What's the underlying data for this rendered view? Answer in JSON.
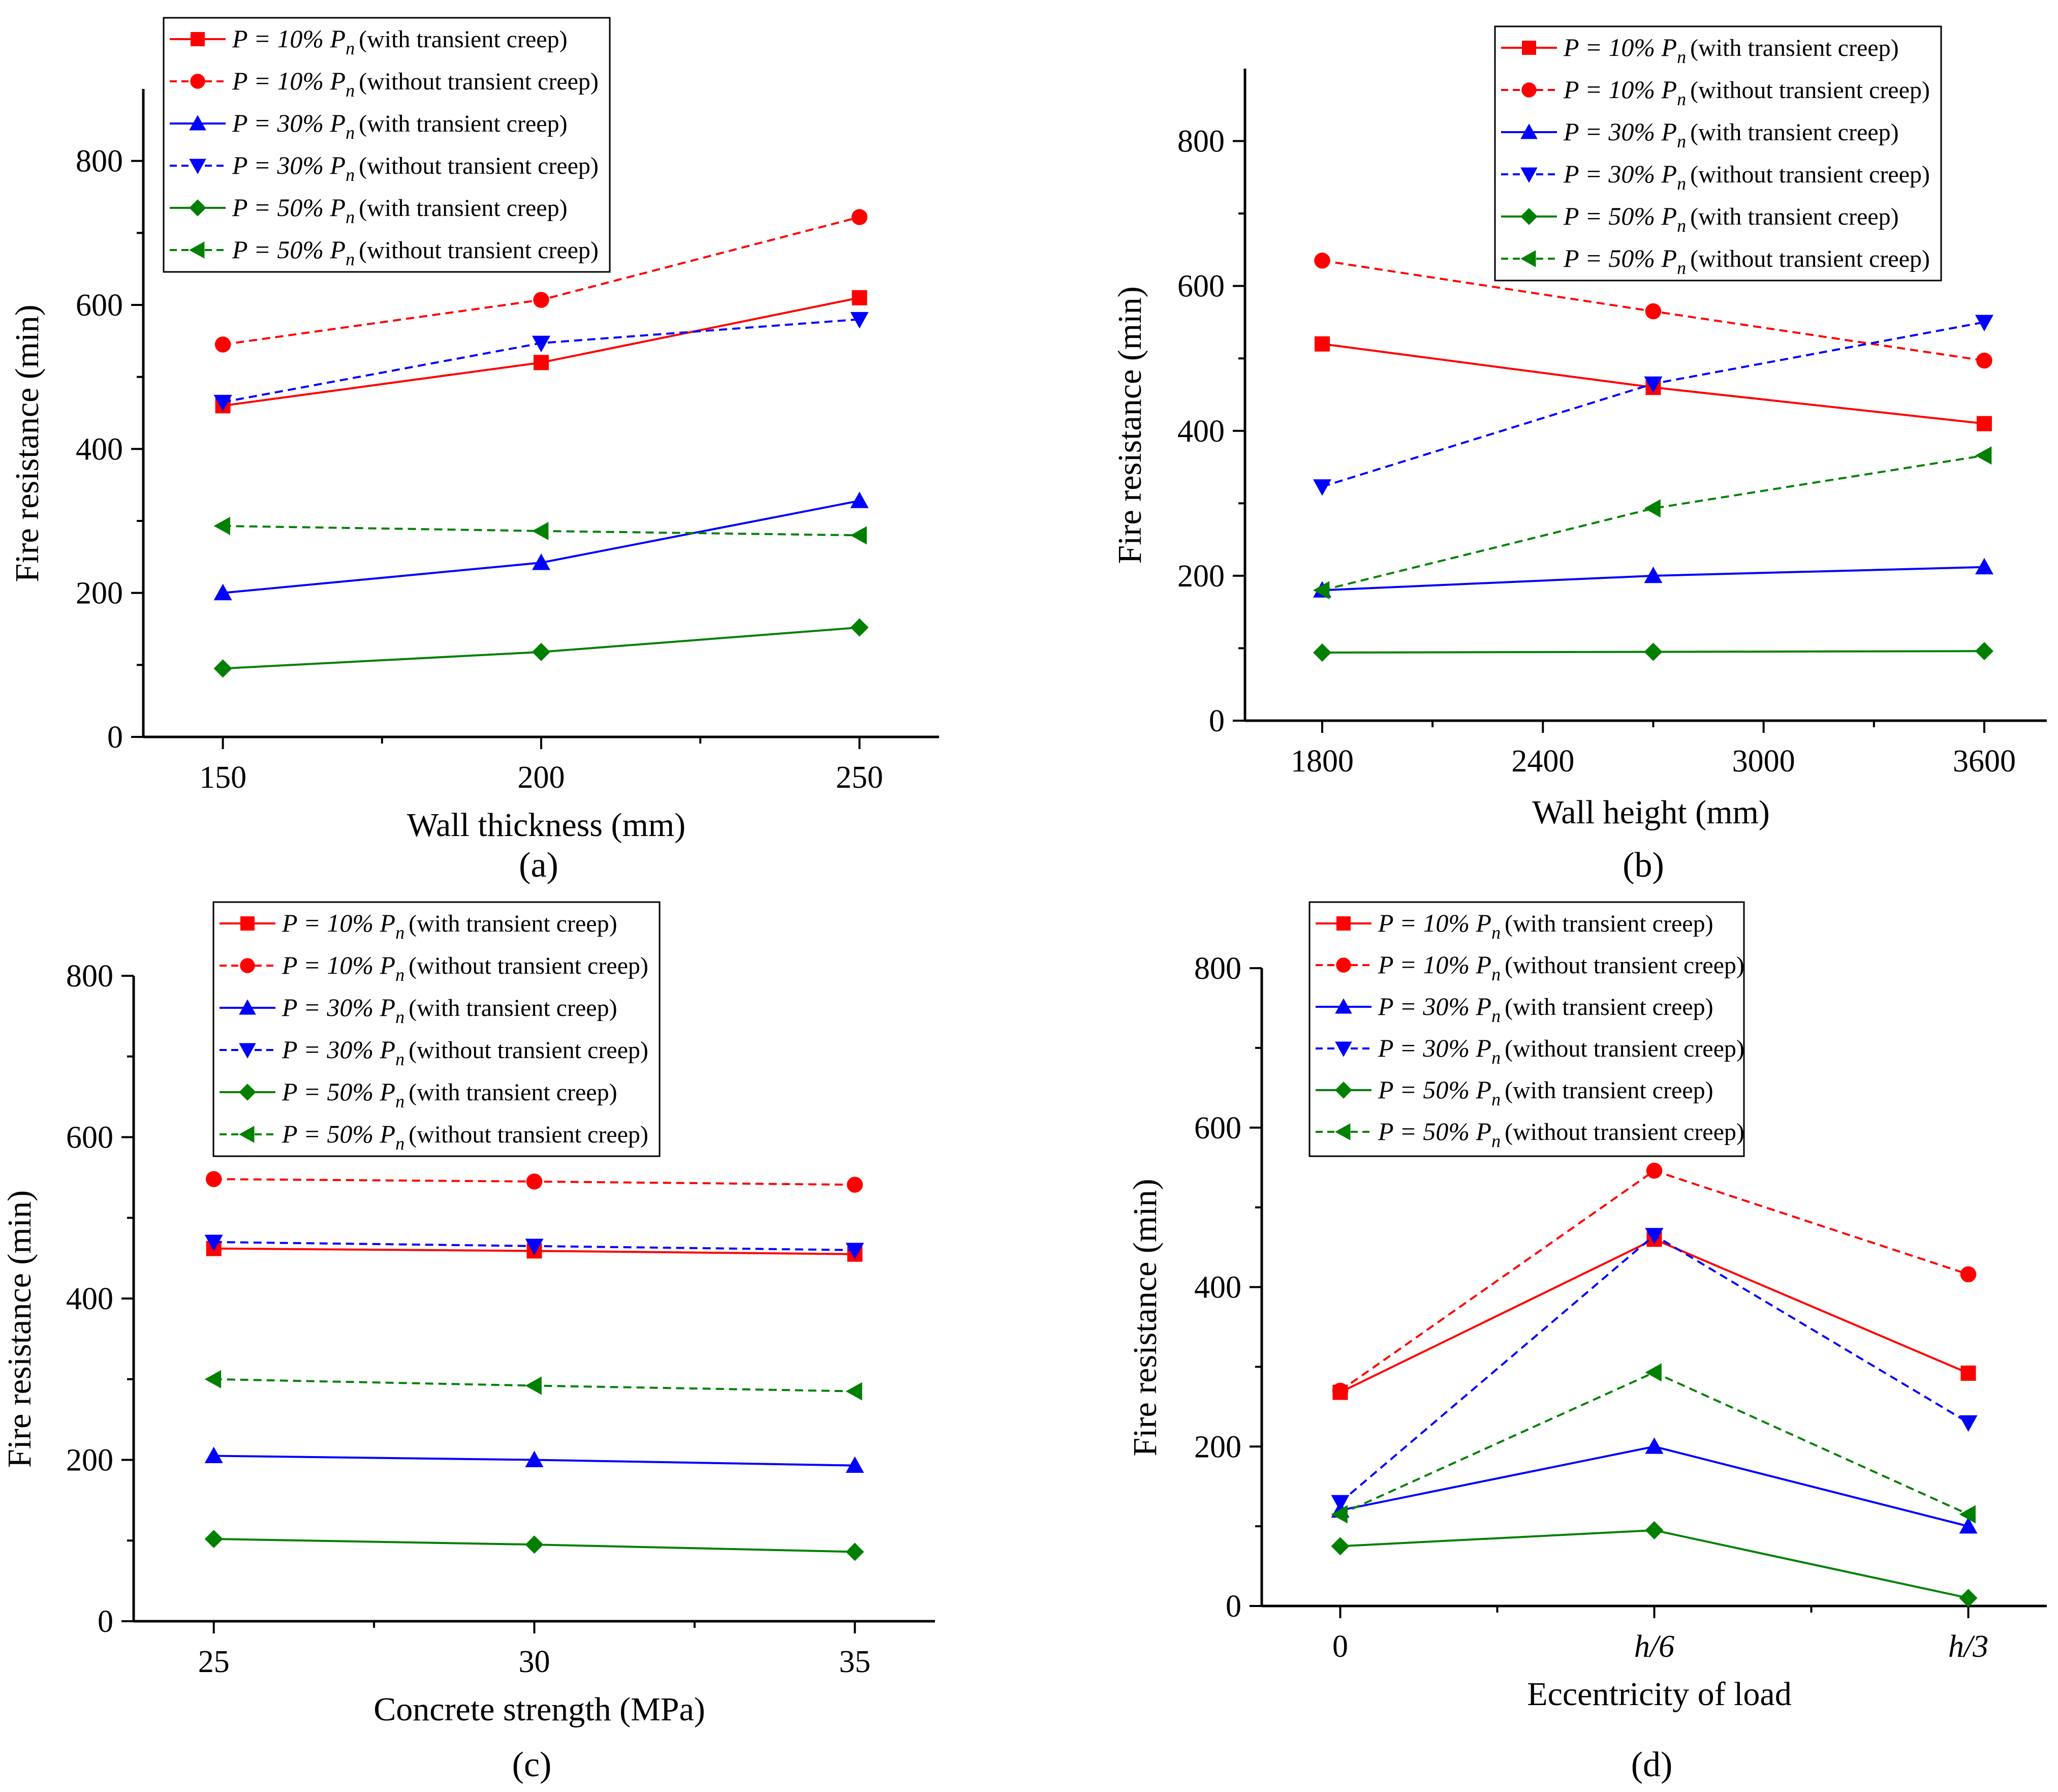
{
  "colors": {
    "red": "#ff0000",
    "blue": "#0000ff",
    "green": "#008000"
  },
  "legend": [
    {
      "prefix": "P = 10% ",
      "pn": "P",
      "sub": "n",
      "note": "(with transient creep)",
      "color": "#ff0000",
      "dash": false,
      "marker": "square"
    },
    {
      "prefix": "P = 10% ",
      "pn": "P",
      "sub": "n",
      "note": "(without transient creep)",
      "color": "#ff0000",
      "dash": true,
      "marker": "circle"
    },
    {
      "prefix": "P = 30% ",
      "pn": "P",
      "sub": "n",
      "note": "(with transient creep)",
      "color": "#0000ff",
      "dash": false,
      "marker": "triangle-up"
    },
    {
      "prefix": "P = 30% ",
      "pn": "P",
      "sub": "n",
      "note": "(without transient creep)",
      "color": "#0000ff",
      "dash": true,
      "marker": "triangle-down"
    },
    {
      "prefix": "P = 50% ",
      "pn": "P",
      "sub": "n",
      "note": "(with transient creep)",
      "color": "#008000",
      "dash": false,
      "marker": "diamond"
    },
    {
      "prefix": "P = 50% ",
      "pn": "P",
      "sub": "n",
      "note": "(without transient creep)",
      "color": "#008000",
      "dash": true,
      "marker": "triangle-left"
    }
  ],
  "chart_data": [
    {
      "id": "a",
      "panel_label": "(a)",
      "type": "line",
      "xlabel": "Wall thickness (mm)",
      "ylabel": "Fire resistance (min)",
      "x": [
        150,
        200,
        250
      ],
      "xlim": [
        137.5,
        262.5
      ],
      "xticks": [
        150,
        200,
        250
      ],
      "xminor": [
        175,
        225
      ],
      "ylim": [
        0,
        900
      ],
      "yticks": [
        0,
        200,
        400,
        600,
        800
      ],
      "yminor": [
        100,
        300,
        500,
        700
      ],
      "series": [
        {
          "name": "P = 10% Pn (with transient creep)",
          "values": [
            460,
            520,
            610
          ]
        },
        {
          "name": "P = 10% Pn (without transient creep)",
          "values": [
            545,
            607,
            722
          ]
        },
        {
          "name": "P = 30% Pn (with transient creep)",
          "values": [
            200,
            242,
            328
          ]
        },
        {
          "name": "P = 30% Pn (without transient creep)",
          "values": [
            465,
            547,
            580
          ]
        },
        {
          "name": "P = 50% Pn (with transient creep)",
          "values": [
            95,
            118,
            152
          ]
        },
        {
          "name": "P = 50% Pn (without transient creep)",
          "values": [
            293,
            286,
            280
          ]
        }
      ]
    },
    {
      "id": "b",
      "panel_label": "(b)",
      "type": "line",
      "xlabel": "Wall height (mm)",
      "ylabel": "Fire resistance (min)",
      "x": [
        1800,
        2700,
        3600
      ],
      "xlim": [
        1590,
        3770
      ],
      "xticks": [
        1800,
        2400,
        3000,
        3600
      ],
      "xminor": [
        2100,
        2700,
        3300
      ],
      "ylim": [
        0,
        900
      ],
      "yticks": [
        0,
        200,
        400,
        600,
        800
      ],
      "yminor": [
        100,
        300,
        500,
        700
      ],
      "series": [
        {
          "name": "P = 10% Pn (with transient creep)",
          "values": [
            520,
            460,
            410
          ]
        },
        {
          "name": "P = 10% Pn (without transient creep)",
          "values": [
            635,
            565,
            497
          ]
        },
        {
          "name": "P = 30% Pn (with transient creep)",
          "values": [
            180,
            200,
            212
          ]
        },
        {
          "name": "P = 30% Pn (without transient creep)",
          "values": [
            323,
            465,
            550
          ]
        },
        {
          "name": "P = 50% Pn (with transient creep)",
          "values": [
            94,
            95,
            96
          ]
        },
        {
          "name": "P = 50% Pn (without transient creep)",
          "values": [
            180,
            293,
            366
          ]
        }
      ]
    },
    {
      "id": "c",
      "panel_label": "(c)",
      "type": "line",
      "xlabel": "Concrete strength (MPa)",
      "ylabel": "Fire resistance (min)",
      "x": [
        25,
        30,
        35
      ],
      "xlim": [
        23.75,
        36.25
      ],
      "xticks": [
        25,
        30,
        35
      ],
      "xminor": [
        27.5,
        32.5
      ],
      "ylim": [
        0,
        800
      ],
      "yticks": [
        0,
        200,
        400,
        600,
        800
      ],
      "yminor": [
        100,
        300,
        500,
        700
      ],
      "series": [
        {
          "name": "P = 10% Pn (with transient creep)",
          "values": [
            462,
            459,
            455
          ]
        },
        {
          "name": "P = 10% Pn (without transient creep)",
          "values": [
            548,
            545,
            541
          ]
        },
        {
          "name": "P = 30% Pn (with transient creep)",
          "values": [
            205,
            200,
            193
          ]
        },
        {
          "name": "P = 30% Pn (without transient creep)",
          "values": [
            470,
            465,
            460
          ]
        },
        {
          "name": "P = 50% Pn (with transient creep)",
          "values": [
            102,
            95,
            86
          ]
        },
        {
          "name": "P = 50% Pn (without transient creep)",
          "values": [
            300,
            292,
            285
          ]
        }
      ]
    },
    {
      "id": "d",
      "panel_label": "(d)",
      "type": "line",
      "xlabel": "Eccentricity of load",
      "ylabel": "Fire resistance (min)",
      "x": [
        0,
        1,
        2
      ],
      "xlim": [
        -0.25,
        2.25
      ],
      "xticks": [
        0,
        1,
        2
      ],
      "xticklabels": [
        "0",
        "h/6",
        "h/3"
      ],
      "xminor": [
        0.5,
        1.5
      ],
      "ylim": [
        0,
        800
      ],
      "yticks": [
        0,
        200,
        400,
        600,
        800
      ],
      "yminor": [
        100,
        300,
        500,
        700
      ],
      "series": [
        {
          "name": "P = 10% Pn (with transient creep)",
          "values": [
            268,
            460,
            292
          ]
        },
        {
          "name": "P = 10% Pn (without transient creep)",
          "values": [
            270,
            546,
            416
          ]
        },
        {
          "name": "P = 30% Pn (with transient creep)",
          "values": [
            120,
            200,
            100
          ]
        },
        {
          "name": "P = 30% Pn (without transient creep)",
          "values": [
            130,
            465,
            230
          ]
        },
        {
          "name": "P = 50% Pn (with transient creep)",
          "values": [
            75,
            95,
            10
          ]
        },
        {
          "name": "P = 50% Pn (without transient creep)",
          "values": [
            115,
            293,
            115
          ]
        }
      ]
    }
  ]
}
